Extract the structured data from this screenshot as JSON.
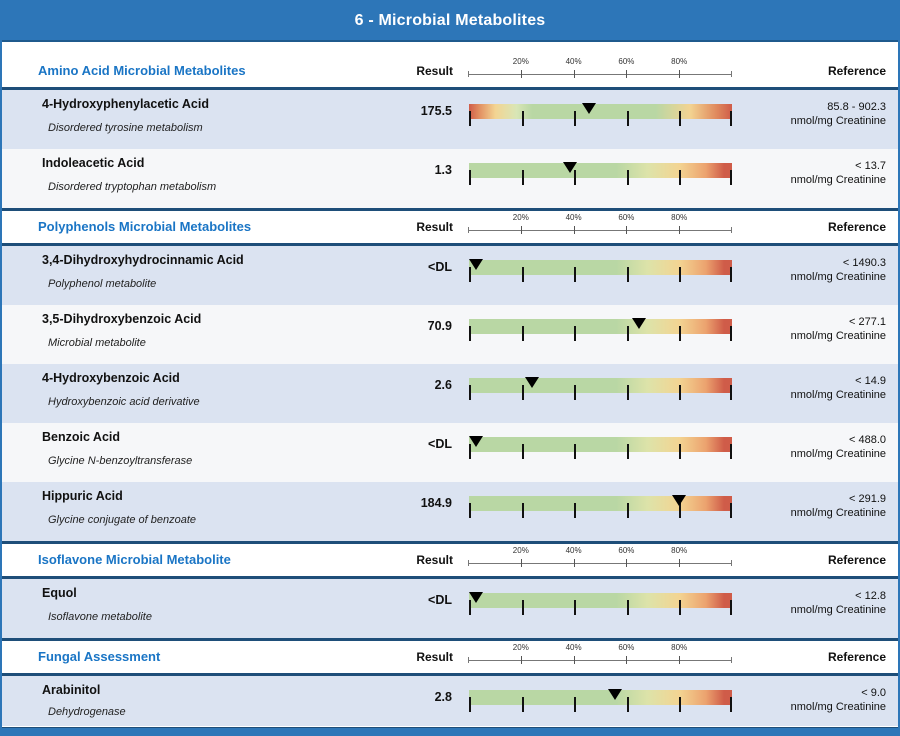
{
  "page": {
    "title": "6 - Microbial Metabolites"
  },
  "columns": {
    "result": "Result",
    "reference": "Reference"
  },
  "scale_labels": [
    "20%",
    "40%",
    "60%",
    "80%"
  ],
  "colors": {
    "banner_blue": "#2d76b8",
    "section_title_blue": "#1a75c5",
    "separator_navy": "#1e4e79",
    "row_shade_blue": "#dbe3f1",
    "row_alt_white": "#f6f7f9",
    "bar_green": "#b9d7a4",
    "bar_yellow": "#f3d492",
    "bar_red": "#cf5c49",
    "marker_black": "#000000"
  },
  "sections": [
    {
      "title": "Amino Acid Microbial Metabolites",
      "rows": [
        {
          "name": "4-Hydroxyphenylacetic Acid",
          "subtitle": "Disordered tyrosine metabolism",
          "result": "175.5",
          "marker_pct": 45.5,
          "bar_type": "range",
          "ref_value": "85.8 - 902.3",
          "ref_unit": "nmol/mg Creatinine"
        },
        {
          "name": "Indoleacetic Acid",
          "subtitle": "Disordered tryptophan metabolism",
          "result": "1.3",
          "marker_pct": 38.5,
          "bar_type": "upper",
          "ref_value": "< 13.7",
          "ref_unit": "nmol/mg Creatinine"
        }
      ]
    },
    {
      "title": "Polyphenols Microbial Metabolites",
      "rows": [
        {
          "name": "3,4-Dihydroxyhydrocinnamic Acid",
          "subtitle": "Polyphenol metabolite",
          "result": "<DL",
          "marker_pct": 2.5,
          "bar_type": "upper",
          "ref_value": "< 1490.3",
          "ref_unit": "nmol/mg Creatinine"
        },
        {
          "name": "3,5-Dihydroxybenzoic Acid",
          "subtitle": "Microbial metabolite",
          "result": "70.9",
          "marker_pct": 64.5,
          "bar_type": "upper",
          "ref_value": "< 277.1",
          "ref_unit": "nmol/mg Creatinine"
        },
        {
          "name": "4-Hydroxybenzoic Acid",
          "subtitle": "Hydroxybenzoic acid derivative",
          "result": "2.6",
          "marker_pct": 24,
          "bar_type": "upper",
          "ref_value": "< 14.9",
          "ref_unit": "nmol/mg Creatinine"
        },
        {
          "name": "Benzoic Acid",
          "subtitle": "Glycine N-benzoyltransferase",
          "result": "<DL",
          "marker_pct": 2.5,
          "bar_type": "upper",
          "ref_value": "< 488.0",
          "ref_unit": "nmol/mg Creatinine"
        },
        {
          "name": "Hippuric Acid",
          "subtitle": "Glycine conjugate of benzoate",
          "result": "184.9",
          "marker_pct": 80,
          "bar_type": "upper",
          "ref_value": "< 291.9",
          "ref_unit": "nmol/mg Creatinine"
        }
      ]
    },
    {
      "title": "Isoflavone Microbial Metabolite",
      "rows": [
        {
          "name": "Equol",
          "subtitle": "Isoflavone metabolite",
          "result": "<DL",
          "marker_pct": 2.5,
          "bar_type": "upper",
          "ref_value": "< 12.8",
          "ref_unit": "nmol/mg Creatinine"
        }
      ]
    },
    {
      "title": "Fungal Assessment",
      "rows": [
        {
          "name": "Arabinitol",
          "subtitle": "Dehydrogenase",
          "result": "2.8",
          "marker_pct": 55.5,
          "bar_type": "upper",
          "short": true,
          "ref_value": "< 9.0",
          "ref_unit": "nmol/mg Creatinine"
        }
      ]
    }
  ]
}
